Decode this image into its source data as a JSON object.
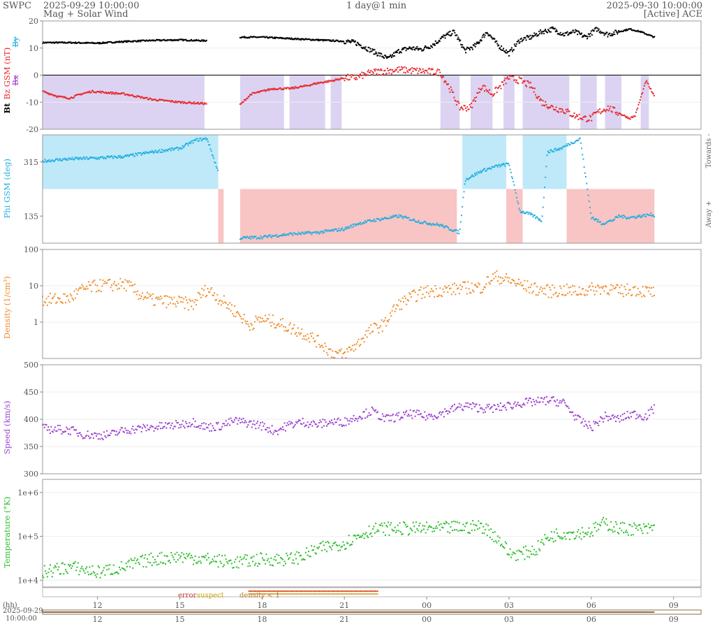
{
  "header": {
    "agency": "SWPC",
    "start_time": "2025-09-29 10:00:00",
    "subtitle": "Mag + Solar Wind",
    "span": "1 day@1 min",
    "end_time": "2025-09-30 10:00:00",
    "source": "[Active] ACE"
  },
  "colors": {
    "bt": "#000000",
    "bz": "#e8262b",
    "phi": "#22aee0",
    "density": "#ef8c2c",
    "speed": "#9a3fcf",
    "temperature": "#2bbd2b",
    "neg_shade": "#dcd3f2",
    "toward_shade": "#bfe9f8",
    "away_shade": "#f9c4c4"
  },
  "chart_data": [
    {
      "type": "scatter",
      "panel": "mag",
      "ylabel_parts": [
        "Bt",
        "Bz GSM (nT)",
        "Bx",
        "By"
      ],
      "ylim": [
        -20,
        20
      ],
      "yticks": [
        "20",
        "10",
        "0",
        "-10",
        "-20"
      ],
      "series": [
        {
          "name": "Bt",
          "x": [
            0,
            1,
            2,
            3,
            4,
            5,
            5.9,
            7.2,
            8,
            9,
            10,
            11,
            11.4,
            11.8,
            12.2,
            12.6,
            13,
            13.4,
            13.8,
            14.2,
            14.6,
            15,
            15.4,
            15.8,
            16.2,
            16.6,
            17,
            17.4,
            17.8,
            18.2,
            18.6,
            19,
            19.4,
            19.8,
            20.2,
            20.6,
            21,
            21.4,
            21.8,
            22.3
          ],
          "y": [
            12,
            12,
            11.8,
            12.4,
            12.8,
            13,
            12.7,
            14,
            14,
            13.5,
            13,
            12.5,
            12,
            10,
            8,
            6,
            9,
            10,
            9.5,
            11,
            14,
            16,
            9,
            11,
            16,
            11,
            8,
            13,
            14,
            16,
            17,
            15,
            16,
            14,
            17,
            15,
            16,
            17,
            16,
            14
          ]
        },
        {
          "name": "Bz GSM",
          "x": [
            0,
            0.6,
            1,
            1.4,
            1.8,
            2.4,
            3,
            4,
            5,
            5.9,
            7.2,
            7.6,
            8,
            8.4,
            9,
            9.6,
            10,
            10.6,
            11,
            11.4,
            12,
            13,
            14.5,
            14.8,
            15.2,
            15.6,
            16,
            16.4,
            17,
            17.4,
            17.8,
            18.2,
            18.6,
            19,
            19.4,
            19.8,
            20,
            20.2,
            20.6,
            21,
            21.4,
            21.6,
            22,
            22.3
          ],
          "y": [
            -6,
            -8,
            -8.5,
            -7,
            -6,
            -6.5,
            -7,
            -9,
            -10,
            -10.5,
            -11,
            -7,
            -6,
            -5,
            -5,
            -4,
            -3,
            -2,
            -1,
            -1,
            1,
            2,
            1,
            -4,
            -12,
            -12,
            -4,
            -7,
            -1,
            -2,
            -4,
            -10,
            -12,
            -13,
            -15,
            -16,
            -16,
            -14,
            -12,
            -14,
            -16,
            -15,
            -2,
            -8
          ]
        }
      ],
      "shaded_negative": [
        [
          0,
          5.9
        ],
        [
          7.2,
          8.8
        ],
        [
          9,
          10.3
        ],
        [
          10.5,
          10.9
        ],
        [
          14.5,
          15.2
        ],
        [
          15.6,
          16.4
        ],
        [
          16.8,
          17.2
        ],
        [
          17.5,
          19.2
        ],
        [
          19.6,
          20.2
        ],
        [
          20.5,
          21.1
        ],
        [
          21.8,
          22.1
        ]
      ]
    },
    {
      "type": "scatter",
      "panel": "phi",
      "ylabel": "Phi GSM (deg)",
      "ylim": [
        45,
        405
      ],
      "yticks": [
        "315",
        "135"
      ],
      "right_labels": [
        "Towards -",
        "Away +"
      ],
      "series": [
        {
          "name": "Phi GSM",
          "x": [
            0,
            1,
            2,
            3,
            4,
            5,
            5.6,
            6,
            7.2,
            8,
            9,
            10,
            11,
            11.5,
            12,
            13,
            13.8,
            14.5,
            15.2,
            15.4,
            16,
            16.6,
            17,
            17.4,
            17.8,
            18.2,
            18.4,
            18.9,
            19.2,
            19.6,
            20,
            20.4,
            20.8,
            21,
            21.4,
            21.8,
            22.2,
            22.3
          ],
          "y": [
            318,
            325,
            328,
            333,
            348,
            360,
            388,
            392,
            62,
            65,
            75,
            80,
            92,
            110,
            120,
            135,
            115,
            105,
            80,
            255,
            285,
            302,
            308,
            152,
            140,
            120,
            348,
            360,
            375,
            392,
            132,
            110,
            122,
            135,
            130,
            135,
            140,
            138
          ]
        }
      ],
      "toward_ranges": [
        [
          0,
          6.4
        ],
        [
          15.3,
          16.9
        ],
        [
          17.5,
          19.1
        ]
      ],
      "away_ranges": [
        [
          6.4,
          6.6
        ],
        [
          7.2,
          15.1
        ],
        [
          16.9,
          17.5
        ],
        [
          19.1,
          22.3
        ]
      ]
    },
    {
      "type": "scatter",
      "panel": "density",
      "ylabel": "Density (1/cm³)",
      "yscale": "log",
      "ylim": [
        0.1,
        100
      ],
      "yticks": [
        "100",
        "10",
        "1"
      ],
      "series": [
        {
          "name": "Density",
          "x": [
            0,
            1,
            1.5,
            2,
            3,
            3.5,
            4,
            5,
            5.5,
            6,
            6.5,
            7,
            7.5,
            8,
            8.5,
            9,
            9.5,
            10,
            10.5,
            11,
            11.5,
            12,
            12.5,
            13,
            14,
            15,
            15.5,
            16,
            16.5,
            17,
            17.5,
            18,
            18.5,
            19,
            19.5,
            20,
            20.5,
            21,
            21.5,
            22,
            22.3
          ],
          "y": [
            4,
            4.5,
            8,
            10,
            11,
            6,
            4,
            3.5,
            3,
            8,
            4,
            2,
            0.8,
            1.2,
            1,
            0.7,
            0.5,
            0.3,
            0.15,
            0.12,
            0.25,
            0.6,
            0.9,
            3,
            7,
            8,
            9,
            9,
            18,
            14,
            10,
            8,
            7,
            7.5,
            7,
            8,
            9,
            7,
            8,
            7,
            6.5
          ]
        }
      ]
    },
    {
      "type": "scatter",
      "panel": "speed",
      "ylabel": "Speed (km/s)",
      "ylim": [
        300,
        500
      ],
      "yticks": [
        "500",
        "450",
        "400",
        "350",
        "300"
      ],
      "series": [
        {
          "name": "Speed",
          "x": [
            0,
            1,
            1.5,
            2,
            2.5,
            3,
            4,
            5,
            5.5,
            6,
            6.5,
            7,
            7.5,
            8,
            8.5,
            9,
            9.5,
            10,
            10.5,
            11,
            11.5,
            12,
            12.5,
            13,
            13.5,
            14,
            14.5,
            15,
            15.5,
            16,
            16.5,
            17,
            17.5,
            18,
            18.5,
            19,
            19.5,
            20,
            20.5,
            21,
            21.5,
            22,
            22.3
          ],
          "y": [
            383,
            380,
            372,
            370,
            372,
            380,
            385,
            390,
            395,
            385,
            388,
            397,
            393,
            388,
            378,
            390,
            395,
            390,
            395,
            395,
            405,
            415,
            400,
            405,
            410,
            405,
            410,
            420,
            425,
            420,
            420,
            425,
            430,
            432,
            435,
            430,
            400,
            385,
            405,
            400,
            410,
            405,
            420
          ]
        }
      ]
    },
    {
      "type": "scatter",
      "panel": "temperature",
      "ylabel": "Temperature (°K)",
      "yscale": "log",
      "ylim": [
        7000,
        2000000
      ],
      "yticks": [
        "1e+6",
        "1e+5",
        "1e+4"
      ],
      "series": [
        {
          "name": "Temperature",
          "x": [
            0,
            1,
            2,
            3,
            4,
            5,
            6,
            7,
            8,
            9,
            9.5,
            10,
            10.5,
            11,
            11.5,
            12,
            12.5,
            13,
            13.5,
            14,
            14.5,
            15,
            15.5,
            16,
            16.5,
            17,
            17.5,
            18,
            18.5,
            19,
            19.5,
            20,
            20.5,
            21,
            21.5,
            22,
            22.3
          ],
          "y": [
            15000,
            20000,
            15000,
            20000,
            30000,
            35000,
            30000,
            25000,
            30000,
            30000,
            35000,
            50000,
            60000,
            70000,
            100000,
            140000,
            150000,
            150000,
            150000,
            150000,
            150000,
            160000,
            160000,
            170000,
            100000,
            40000,
            40000,
            50000,
            100000,
            120000,
            120000,
            130000,
            200000,
            150000,
            150000,
            140000,
            160000
          ]
        }
      ]
    }
  ],
  "flags": {
    "labels": [
      "error",
      "suspect",
      "density < 1"
    ],
    "spans": [
      [
        7.5,
        12.2
      ]
    ]
  },
  "time_axis": {
    "unit_label": "(hh)",
    "range_start_date": "2025-09-29",
    "range_start_time": "10:00:00",
    "ticks": [
      [
        "12",
        2
      ],
      [
        "15",
        5
      ],
      [
        "18",
        8
      ],
      [
        "21",
        11
      ],
      [
        "00",
        14
      ],
      [
        "03",
        17
      ],
      [
        "06",
        20
      ],
      [
        "09",
        23
      ]
    ]
  }
}
